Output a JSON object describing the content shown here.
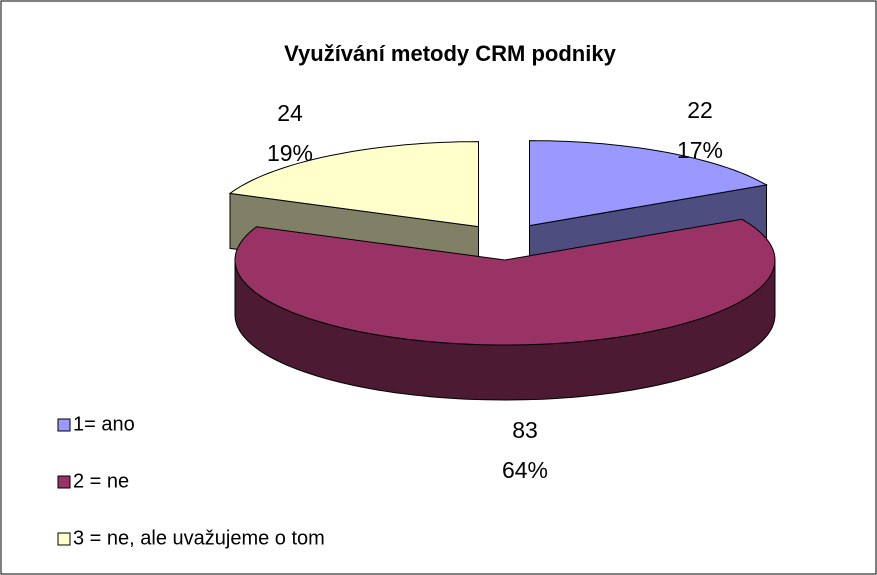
{
  "chart_data": {
    "type": "pie3d",
    "title": "Využívání metody CRM podniky",
    "categories": [
      "1= ano",
      "2 = ne",
      "3 = ne, ale uvažujeme o tom"
    ],
    "values": [
      22,
      83,
      24
    ],
    "percent_labels": [
      "17%",
      "64%",
      "19%"
    ],
    "colors": [
      "#9999ff",
      "#993366",
      "#ffffcc"
    ],
    "side_colors": [
      "#4d4d80",
      "#4d1a33",
      "#808066"
    ],
    "legend": "left"
  }
}
